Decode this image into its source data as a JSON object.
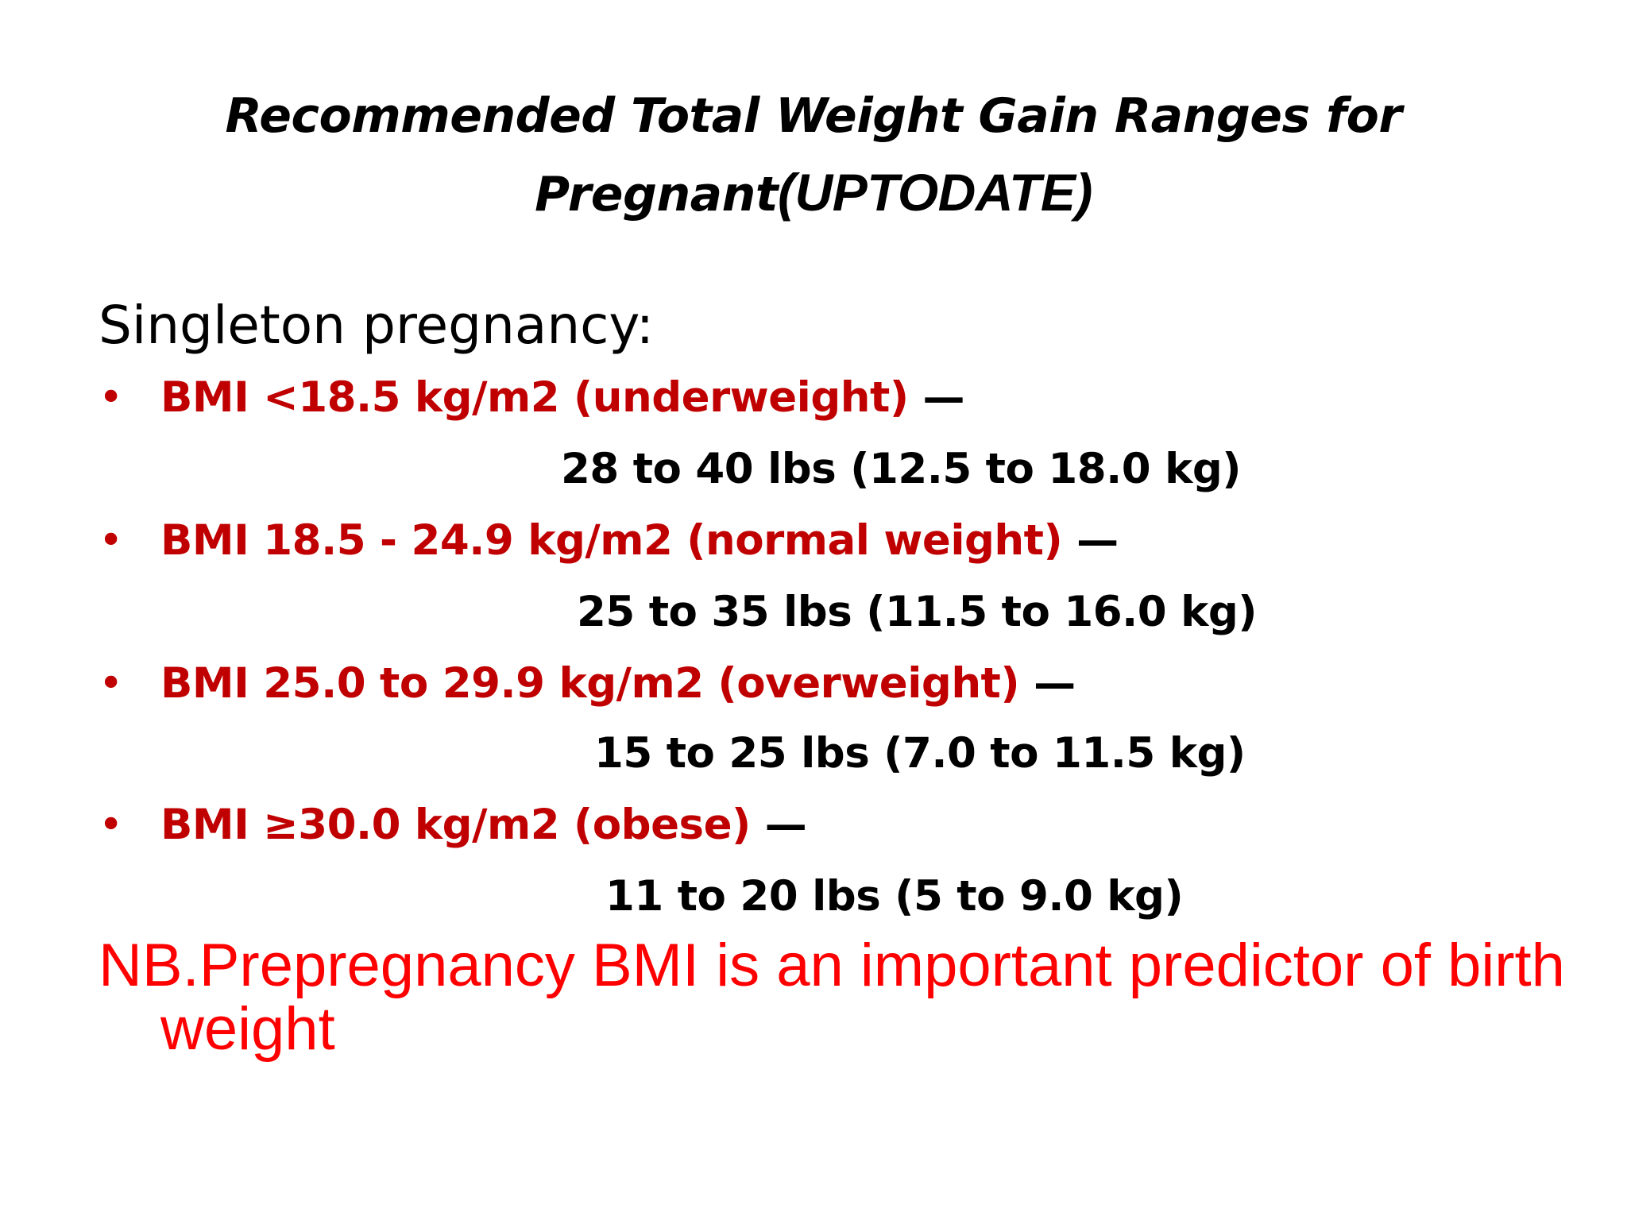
{
  "title": {
    "line1": "Recommended Total Weight Gain Ranges for",
    "line2_main": "Pregnant",
    "line2_suffix": "(UPTODATE)"
  },
  "subtitle": "Singleton pregnancy:",
  "items": [
    {
      "bullet": "•",
      "condition": "BMI <18.5 kg/m2 (underweight)",
      "dash": " —",
      "range": "28 to 40 lbs (12.5 to 18.0 kg)"
    },
    {
      "bullet": "•",
      "condition": "BMI 18.5 - 24.9 kg/m2 (normal weight)",
      "dash": " —",
      "range": "25 to 35 lbs (11.5 to 16.0 kg)"
    },
    {
      "bullet": "•",
      "condition": "BMI 25.0 to 29.9 kg/m2 (overweight)",
      "dash": " —",
      "range": "15 to 25 lbs (7.0 to 11.5 kg)"
    },
    {
      "bullet": "•",
      "condition": "BMI ≥30.0 kg/m2 (obese)",
      "dash": " —",
      "range": "11 to 20 lbs (5 to 9.0 kg)"
    }
  ],
  "note": "NB.Prepregnancy BMI is an important predictor of birth weight",
  "colors": {
    "condition": "#c00000",
    "note": "#ff0000",
    "text": "#000000",
    "background": "#ffffff"
  }
}
